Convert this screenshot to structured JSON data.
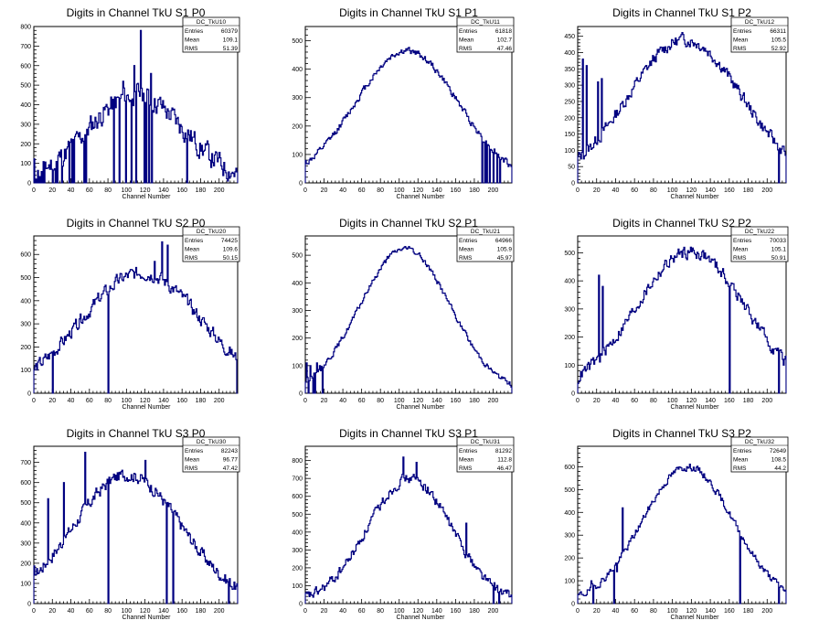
{
  "page": {
    "background": "#ffffff",
    "line_color": "#000080",
    "xlabel": "Channel Number",
    "stats_labels": [
      "Entries",
      "Mean",
      "RMS"
    ]
  },
  "chart_data": [
    {
      "type": "histogram",
      "title": "Digits in Channel TkU S1 P0",
      "xlabel": "Channel Number",
      "xlim": [
        0,
        220
      ],
      "ylim": [
        0,
        800
      ],
      "xticks": [
        0,
        20,
        40,
        60,
        80,
        100,
        120,
        140,
        160,
        180,
        200
      ],
      "yticks": [
        0,
        100,
        200,
        300,
        400,
        500,
        600,
        700,
        800
      ],
      "stats": {
        "name": "DC_TkU10",
        "entries": "60379",
        "mean": "109.1",
        "rms": "51.39"
      },
      "mean": 109,
      "sigma": 52,
      "peak": 450,
      "noise": 90,
      "seed": 11,
      "spikes": [
        [
          115,
          780
        ],
        [
          108,
          600
        ],
        [
          126,
          560
        ],
        [
          96,
          520
        ],
        [
          87,
          440
        ]
      ],
      "dropouts": [
        1,
        3,
        5,
        7,
        9,
        11,
        20,
        23,
        25,
        30,
        38,
        41,
        43,
        54,
        56,
        86,
        92,
        99,
        105,
        110,
        119,
        121,
        124,
        127,
        165
      ]
    },
    {
      "type": "histogram",
      "title": "Digits in Channel TkU S1 P1",
      "xlabel": "Channel Number",
      "xlim": [
        0,
        220
      ],
      "ylim": [
        0,
        550
      ],
      "xticks": [
        0,
        20,
        40,
        60,
        80,
        100,
        120,
        140,
        160,
        180,
        200
      ],
      "yticks": [
        0,
        100,
        200,
        300,
        400,
        500
      ],
      "stats": {
        "name": "DC_TkU11",
        "entries": "61818",
        "mean": "102.7",
        "rms": "47.46"
      },
      "mean": 107,
      "sigma": 55,
      "peak": 465,
      "noise": 18,
      "seed": 12,
      "spikes": [],
      "dropouts": [
        188,
        191,
        193,
        196,
        200,
        204,
        207
      ]
    },
    {
      "type": "histogram",
      "title": "Digits in Channel TkU S1 P2",
      "xlabel": "Channel Number",
      "xlim": [
        0,
        220
      ],
      "ylim": [
        0,
        480
      ],
      "xticks": [
        0,
        20,
        40,
        60,
        80,
        100,
        120,
        140,
        160,
        180,
        200
      ],
      "yticks": [
        0,
        50,
        100,
        150,
        200,
        250,
        300,
        350,
        400,
        450
      ],
      "stats": {
        "name": "DC_TkU12",
        "entries": "66311",
        "mean": "105.5",
        "rms": "52.92"
      },
      "mean": 112,
      "sigma": 60,
      "peak": 440,
      "noise": 30,
      "seed": 13,
      "spikes": [
        [
          5,
          380
        ],
        [
          9,
          360
        ],
        [
          25,
          320
        ],
        [
          21,
          310
        ]
      ],
      "dropouts": [
        212
      ]
    },
    {
      "type": "histogram",
      "title": "Digits in Channel TkU S2 P0",
      "xlabel": "Channel Number",
      "xlim": [
        0,
        220
      ],
      "ylim": [
        0,
        680
      ],
      "xticks": [
        0,
        20,
        40,
        60,
        80,
        100,
        120,
        140,
        160,
        180,
        200
      ],
      "yticks": [
        0,
        100,
        200,
        300,
        400,
        500,
        600
      ],
      "stats": {
        "name": "DC_TkU20",
        "entries": "74425",
        "mean": "109.6",
        "rms": "50.15"
      },
      "mean": 115,
      "sigma": 65,
      "peak": 520,
      "noise": 45,
      "seed": 14,
      "spikes": [
        [
          138,
          655
        ],
        [
          144,
          640
        ],
        [
          130,
          570
        ]
      ],
      "dropouts": [
        20,
        80,
        219
      ]
    },
    {
      "type": "histogram",
      "title": "Digits in Channel TkU S2 P1",
      "xlabel": "Channel Number",
      "xlim": [
        0,
        220
      ],
      "ylim": [
        0,
        570
      ],
      "xticks": [
        0,
        20,
        40,
        60,
        80,
        100,
        120,
        140,
        160,
        180,
        200
      ],
      "yticks": [
        0,
        100,
        200,
        300,
        400,
        500
      ],
      "stats": {
        "name": "DC_TkU21",
        "entries": "64966",
        "mean": "105.9",
        "rms": "45.97"
      },
      "mean": 105,
      "sigma": 48,
      "peak": 525,
      "noise": 15,
      "seed": 15,
      "spikes": [
        [
          1,
          110
        ],
        [
          5,
          100
        ],
        [
          12,
          110
        ],
        [
          15,
          100
        ]
      ],
      "dropouts": [
        3,
        8,
        10,
        18
      ]
    },
    {
      "type": "histogram",
      "title": "Digits in Channel TkU S2 P2",
      "xlabel": "Channel Number",
      "xlim": [
        0,
        220
      ],
      "ylim": [
        0,
        560
      ],
      "xticks": [
        0,
        20,
        40,
        60,
        80,
        100,
        120,
        140,
        160,
        180,
        200
      ],
      "yticks": [
        0,
        100,
        200,
        300,
        400,
        500
      ],
      "stats": {
        "name": "DC_TkU22",
        "entries": "70033",
        "mean": "105.1",
        "rms": "50.91"
      },
      "mean": 118,
      "sigma": 58,
      "peak": 505,
      "noise": 35,
      "seed": 16,
      "spikes": [
        [
          22,
          420
        ],
        [
          26,
          380
        ]
      ],
      "dropouts": [
        160,
        212
      ]
    },
    {
      "type": "histogram",
      "title": "Digits in Channel TkU S3 P0",
      "xlabel": "Channel Number",
      "xlim": [
        0,
        220
      ],
      "ylim": [
        0,
        780
      ],
      "xticks": [
        0,
        20,
        40,
        60,
        80,
        100,
        120,
        140,
        160,
        180,
        200
      ],
      "yticks": [
        0,
        100,
        200,
        300,
        400,
        500,
        600,
        700
      ],
      "stats": {
        "name": "DC_TkU30",
        "entries": "82243",
        "mean": "96.77",
        "rms": "47.42"
      },
      "mean": 100,
      "sigma": 58,
      "peak": 640,
      "noise": 50,
      "seed": 17,
      "spikes": [
        [
          55,
          750
        ],
        [
          32,
          600
        ],
        [
          15,
          520
        ],
        [
          120,
          710
        ]
      ],
      "dropouts": [
        80,
        143,
        150,
        210
      ]
    },
    {
      "type": "histogram",
      "title": "Digits in Channel TkU S3 P1",
      "xlabel": "Channel Number",
      "xlim": [
        0,
        220
      ],
      "ylim": [
        0,
        880
      ],
      "xticks": [
        0,
        20,
        40,
        60,
        80,
        100,
        120,
        140,
        160,
        180,
        200
      ],
      "yticks": [
        0,
        100,
        200,
        300,
        400,
        500,
        600,
        700,
        800
      ],
      "stats": {
        "name": "DC_TkU31",
        "entries": "81292",
        "mean": "112.8",
        "rms": "46.47"
      },
      "mean": 110,
      "sigma": 45,
      "peak": 700,
      "noise": 45,
      "seed": 18,
      "spikes": [
        [
          104,
          820
        ],
        [
          118,
          790
        ],
        [
          171,
          450
        ]
      ],
      "dropouts": [
        200,
        206
      ]
    },
    {
      "type": "histogram",
      "title": "Digits in Channel TkU S3 P2",
      "xlabel": "Channel Number",
      "xlim": [
        0,
        220
      ],
      "ylim": [
        0,
        690
      ],
      "xticks": [
        0,
        20,
        40,
        60,
        80,
        100,
        120,
        140,
        160,
        180,
        200
      ],
      "yticks": [
        0,
        100,
        200,
        300,
        400,
        500,
        600
      ],
      "stats": {
        "name": "DC_TkU32",
        "entries": "72649",
        "mean": "108.5",
        "rms": "44.2"
      },
      "mean": 115,
      "sigma": 48,
      "peak": 600,
      "noise": 25,
      "seed": 19,
      "spikes": [
        [
          47,
          420
        ],
        [
          14,
          100
        ],
        [
          41,
          140
        ]
      ],
      "dropouts": [
        16,
        38,
        171,
        212
      ]
    }
  ]
}
